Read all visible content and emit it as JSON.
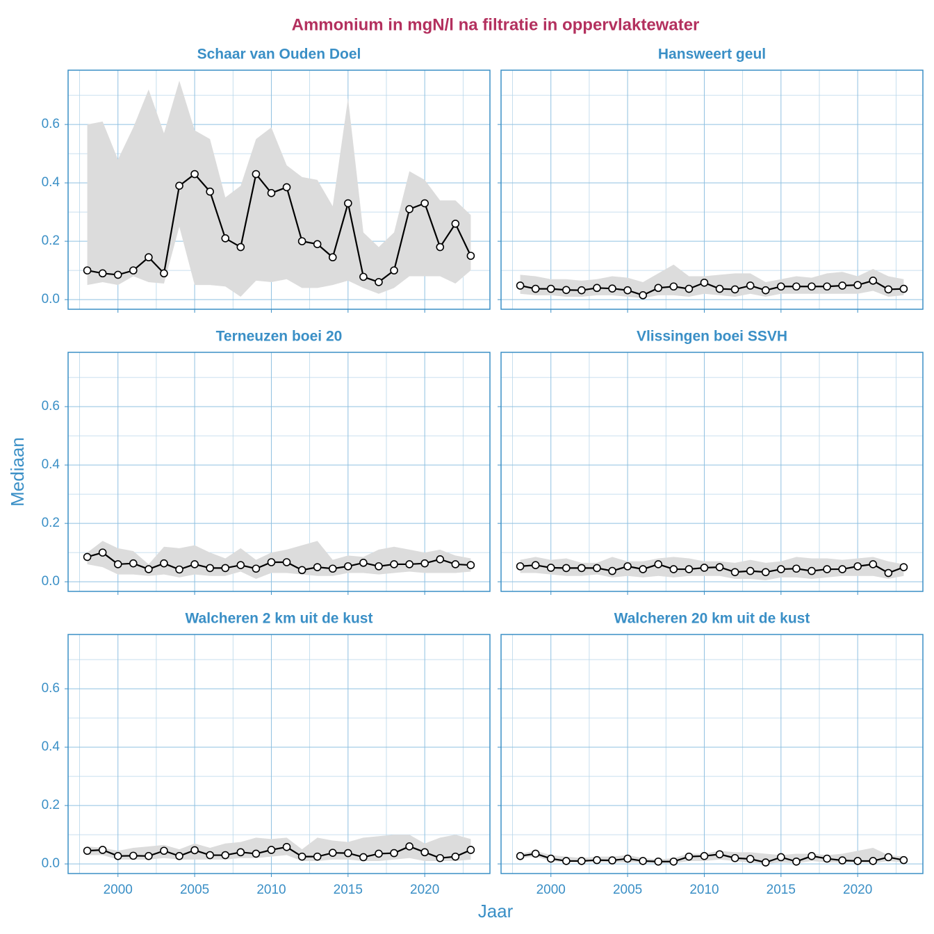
{
  "title": "Ammonium in mgN/l na filtratie in oppervlaktewater",
  "xlabel": "Jaar",
  "ylabel": "Mediaan",
  "chart_data": [
    {
      "type": "line",
      "title": "Schaar van Ouden Doel",
      "color": "#000000",
      "band_color": "#dcdcdc",
      "x": [
        1998,
        1999,
        2000,
        2001,
        2002,
        2003,
        2004,
        2005,
        2006,
        2007,
        2008,
        2009,
        2010,
        2011,
        2012,
        2013,
        2014,
        2015,
        2016,
        2017,
        2018,
        2019,
        2020,
        2021,
        2022,
        2023
      ],
      "values": [
        0.1,
        0.09,
        0.085,
        0.1,
        0.145,
        0.09,
        0.39,
        0.43,
        0.37,
        0.21,
        0.18,
        0.43,
        0.365,
        0.385,
        0.2,
        0.19,
        0.145,
        0.33,
        0.078,
        0.06,
        0.1,
        0.31,
        0.33,
        0.18,
        0.26,
        0.15
      ],
      "upper": [
        0.6,
        0.61,
        0.48,
        0.59,
        0.72,
        0.57,
        0.75,
        0.58,
        0.55,
        0.35,
        0.39,
        0.55,
        0.59,
        0.46,
        0.42,
        0.41,
        0.32,
        0.69,
        0.23,
        0.18,
        0.23,
        0.44,
        0.41,
        0.34,
        0.34,
        0.29
      ],
      "lower": [
        0.05,
        0.06,
        0.05,
        0.08,
        0.06,
        0.055,
        0.25,
        0.05,
        0.05,
        0.045,
        0.01,
        0.065,
        0.06,
        0.07,
        0.04,
        0.04,
        0.05,
        0.065,
        0.04,
        0.02,
        0.04,
        0.08,
        0.08,
        0.08,
        0.055,
        0.1
      ],
      "xlim": [
        1996.75,
        2024.25
      ],
      "ylim": [
        -0.033,
        0.786
      ],
      "xticks": [
        2000,
        2005,
        2010,
        2015,
        2020
      ],
      "yticks": [
        {
          "value": 0,
          "label": "0.0"
        },
        0.2,
        0.4,
        0.6
      ],
      "grid": true
    },
    {
      "type": "line",
      "title": "Hansweert geul",
      "color": "#000000",
      "band_color": "#dcdcdc",
      "x": [
        1998,
        1999,
        2000,
        2001,
        2002,
        2003,
        2004,
        2005,
        2006,
        2007,
        2008,
        2009,
        2010,
        2011,
        2012,
        2013,
        2014,
        2015,
        2016,
        2017,
        2018,
        2019,
        2020,
        2021,
        2022,
        2023
      ],
      "values": [
        0.048,
        0.037,
        0.037,
        0.033,
        0.032,
        0.04,
        0.038,
        0.032,
        0.015,
        0.04,
        0.045,
        0.037,
        0.058,
        0.037,
        0.035,
        0.048,
        0.032,
        0.045,
        0.045,
        0.045,
        0.045,
        0.048,
        0.05,
        0.065,
        0.035,
        0.037
      ],
      "upper": [
        0.085,
        0.08,
        0.07,
        0.07,
        0.065,
        0.07,
        0.08,
        0.075,
        0.06,
        0.09,
        0.12,
        0.08,
        0.08,
        0.085,
        0.09,
        0.09,
        0.06,
        0.07,
        0.08,
        0.075,
        0.09,
        0.095,
        0.08,
        0.105,
        0.08,
        0.07
      ],
      "lower": [
        0.02,
        0.015,
        0.015,
        0.01,
        0.01,
        0.015,
        0.015,
        0.01,
        0.005,
        0.015,
        0.015,
        0.01,
        0.02,
        0.015,
        0.01,
        0.02,
        0.01,
        0.02,
        0.02,
        0.02,
        0.02,
        0.02,
        0.02,
        0.03,
        0.01,
        0.015
      ],
      "xlim": [
        1996.75,
        2024.25
      ],
      "ylim": [
        -0.033,
        0.786
      ],
      "xticks": [
        2000,
        2005,
        2010,
        2015,
        2020
      ],
      "yticks": [
        {
          "value": 0,
          "label": "0.0"
        },
        0.2,
        0.4,
        0.6
      ],
      "grid": true
    },
    {
      "type": "line",
      "title": "Terneuzen boei 20",
      "color": "#000000",
      "band_color": "#dcdcdc",
      "x": [
        1998,
        1999,
        2000,
        2001,
        2002,
        2003,
        2004,
        2005,
        2006,
        2007,
        2008,
        2009,
        2010,
        2011,
        2012,
        2013,
        2014,
        2015,
        2016,
        2017,
        2018,
        2019,
        2020,
        2021,
        2022,
        2023
      ],
      "values": [
        0.085,
        0.1,
        0.06,
        0.063,
        0.043,
        0.063,
        0.042,
        0.06,
        0.047,
        0.047,
        0.057,
        0.045,
        0.067,
        0.067,
        0.04,
        0.05,
        0.045,
        0.053,
        0.065,
        0.053,
        0.06,
        0.06,
        0.063,
        0.077,
        0.06,
        0.057
      ],
      "upper": [
        0.1,
        0.14,
        0.115,
        0.105,
        0.06,
        0.12,
        0.115,
        0.125,
        0.1,
        0.08,
        0.115,
        0.075,
        0.1,
        0.11,
        0.125,
        0.14,
        0.075,
        0.09,
        0.085,
        0.11,
        0.12,
        0.11,
        0.1,
        0.11,
        0.09,
        0.08
      ],
      "lower": [
        0.06,
        0.05,
        0.025,
        0.025,
        0.02,
        0.025,
        0.015,
        0.025,
        0.02,
        0.02,
        0.035,
        0.01,
        0.03,
        0.03,
        0.025,
        0.02,
        0.02,
        0.03,
        0.03,
        0.025,
        0.03,
        0.035,
        0.03,
        0.03,
        0.03,
        0.035
      ],
      "xlim": [
        1996.75,
        2024.25
      ],
      "ylim": [
        -0.033,
        0.786
      ],
      "xticks": [
        2000,
        2005,
        2010,
        2015,
        2020
      ],
      "yticks": [
        {
          "value": 0,
          "label": "0.0"
        },
        0.2,
        0.4,
        0.6
      ],
      "grid": true
    },
    {
      "type": "line",
      "title": "Vlissingen boei SSVH",
      "color": "#000000",
      "band_color": "#dcdcdc",
      "x": [
        1998,
        1999,
        2000,
        2001,
        2002,
        2003,
        2004,
        2005,
        2006,
        2007,
        2008,
        2009,
        2010,
        2011,
        2012,
        2013,
        2014,
        2015,
        2016,
        2017,
        2018,
        2019,
        2020,
        2021,
        2022,
        2023
      ],
      "values": [
        0.053,
        0.057,
        0.048,
        0.047,
        0.047,
        0.047,
        0.037,
        0.053,
        0.043,
        0.06,
        0.043,
        0.043,
        0.048,
        0.05,
        0.033,
        0.037,
        0.033,
        0.043,
        0.045,
        0.037,
        0.043,
        0.043,
        0.053,
        0.06,
        0.03,
        0.05
      ],
      "upper": [
        0.075,
        0.085,
        0.075,
        0.08,
        0.065,
        0.065,
        0.085,
        0.07,
        0.07,
        0.08,
        0.085,
        0.08,
        0.07,
        0.07,
        0.065,
        0.075,
        0.065,
        0.07,
        0.085,
        0.08,
        0.08,
        0.075,
        0.08,
        0.085,
        0.07,
        0.06
      ],
      "lower": [
        0.03,
        0.03,
        0.025,
        0.02,
        0.02,
        0.025,
        0.015,
        0.02,
        0.015,
        0.02,
        0.015,
        0.02,
        0.02,
        0.02,
        0.01,
        0.01,
        0.005,
        0.015,
        0.015,
        0.01,
        0.015,
        0.02,
        0.02,
        0.02,
        0.01,
        0.02
      ],
      "xlim": [
        1996.75,
        2024.25
      ],
      "ylim": [
        -0.033,
        0.786
      ],
      "xticks": [
        2000,
        2005,
        2010,
        2015,
        2020
      ],
      "yticks": [
        {
          "value": 0,
          "label": "0.0"
        },
        0.2,
        0.4,
        0.6
      ],
      "grid": true
    },
    {
      "type": "line",
      "title": "Walcheren 2 km uit de kust",
      "color": "#000000",
      "band_color": "#dcdcdc",
      "x": [
        1998,
        1999,
        2000,
        2001,
        2002,
        2003,
        2004,
        2005,
        2006,
        2007,
        2008,
        2009,
        2010,
        2011,
        2012,
        2013,
        2014,
        2015,
        2016,
        2017,
        2018,
        2019,
        2020,
        2021,
        2022,
        2023
      ],
      "values": [
        0.045,
        0.048,
        0.027,
        0.028,
        0.027,
        0.045,
        0.027,
        0.047,
        0.03,
        0.03,
        0.04,
        0.035,
        0.048,
        0.058,
        0.025,
        0.025,
        0.038,
        0.037,
        0.023,
        0.035,
        0.037,
        0.06,
        0.04,
        0.02,
        0.025,
        0.048
      ],
      "upper": [
        0.06,
        0.055,
        0.045,
        0.055,
        0.06,
        0.065,
        0.05,
        0.07,
        0.055,
        0.07,
        0.075,
        0.09,
        0.085,
        0.09,
        0.05,
        0.09,
        0.08,
        0.075,
        0.09,
        0.095,
        0.1,
        0.1,
        0.07,
        0.09,
        0.1,
        0.085
      ],
      "lower": [
        0.03,
        0.03,
        0.015,
        0.015,
        0.015,
        0.02,
        0.015,
        0.015,
        0.015,
        0.015,
        0.02,
        0.02,
        0.025,
        0.03,
        0.01,
        0.01,
        0.015,
        0.015,
        0.01,
        0.01,
        0.015,
        0.02,
        0.01,
        0.01,
        0.01,
        0.015
      ],
      "xlim": [
        1996.75,
        2024.25
      ],
      "ylim": [
        -0.033,
        0.786
      ],
      "xticks": [
        2000,
        2005,
        2010,
        2015,
        2020
      ],
      "yticks": [
        {
          "value": 0,
          "label": "0.0"
        },
        0.2,
        0.4,
        0.6
      ],
      "grid": true
    },
    {
      "type": "line",
      "title": "Walcheren 20 km uit de kust",
      "color": "#000000",
      "band_color": "#dcdcdc",
      "x": [
        1998,
        1999,
        2000,
        2001,
        2002,
        2003,
        2004,
        2005,
        2006,
        2007,
        2008,
        2009,
        2010,
        2011,
        2012,
        2013,
        2014,
        2015,
        2016,
        2017,
        2018,
        2019,
        2020,
        2021,
        2022,
        2023
      ],
      "values": [
        0.027,
        0.035,
        0.018,
        0.01,
        0.01,
        0.013,
        0.012,
        0.018,
        0.01,
        0.008,
        0.008,
        0.025,
        0.027,
        0.033,
        0.02,
        0.017,
        0.005,
        0.023,
        0.008,
        0.027,
        0.018,
        0.012,
        0.01,
        0.01,
        0.023,
        0.013
      ],
      "upper": [
        0.035,
        0.045,
        0.03,
        0.025,
        0.02,
        0.025,
        0.025,
        0.03,
        0.02,
        0.015,
        0.02,
        0.035,
        0.035,
        0.045,
        0.04,
        0.04,
        0.035,
        0.03,
        0.035,
        0.035,
        0.03,
        0.035,
        0.045,
        0.055,
        0.03,
        0.025
      ],
      "lower": [
        0.02,
        0.025,
        0.01,
        0.005,
        0.005,
        0.005,
        0.005,
        0.005,
        0.005,
        0.002,
        0.002,
        0.01,
        0.01,
        0.015,
        0.01,
        0.005,
        0.0,
        0.005,
        0.002,
        0.01,
        0.005,
        0.005,
        0.005,
        0.002,
        0.01,
        0.005
      ],
      "xlim": [
        1996.75,
        2024.25
      ],
      "ylim": [
        -0.033,
        0.786
      ],
      "xticks": [
        2000,
        2005,
        2010,
        2015,
        2020
      ],
      "yticks": [
        {
          "value": 0,
          "label": "0.0"
        },
        0.2,
        0.4,
        0.6
      ],
      "grid": true
    }
  ]
}
